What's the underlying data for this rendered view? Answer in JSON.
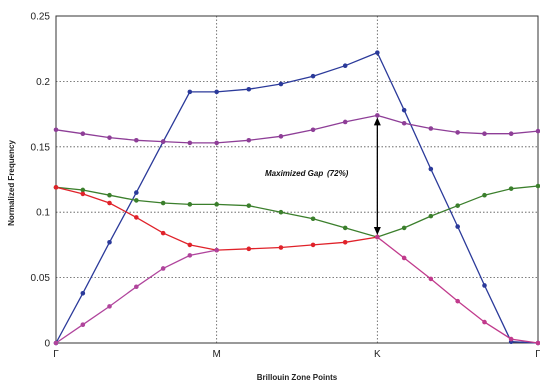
{
  "chart_data": {
    "type": "line",
    "xlabel": "Brillouin Zone Points",
    "ylabel": "Normalized Frequency",
    "x_ticks": [
      "Γ",
      "M",
      "K",
      "Γ"
    ],
    "ylim": [
      0,
      0.25
    ],
    "y_ticks": [
      "0",
      "0.05",
      "0.1",
      "0.15",
      "0.2",
      "0.25"
    ],
    "grid": true,
    "annotation": {
      "text": "Maximized Gap",
      "percent": "(72%)",
      "from_y": 0.081,
      "to_y": 0.174,
      "at_x": 2
    },
    "series": [
      {
        "color": "#2b3a9a",
        "x": [
          0,
          0.167,
          0.333,
          0.5,
          0.667,
          0.833,
          1,
          1.2,
          1.4,
          1.6,
          1.8,
          2,
          2.167,
          2.333,
          2.5,
          2.667,
          2.833,
          3
        ],
        "y": [
          0,
          0.038,
          0.077,
          0.115,
          0.154,
          0.192,
          0.192,
          0.194,
          0.198,
          0.204,
          0.212,
          0.222,
          0.178,
          0.133,
          0.089,
          0.044,
          0.001,
          0
        ]
      },
      {
        "color": "#8e3e97",
        "x": [
          0,
          0.167,
          0.333,
          0.5,
          0.667,
          0.833,
          1,
          1.2,
          1.4,
          1.6,
          1.8,
          2,
          2.167,
          2.333,
          2.5,
          2.667,
          2.833,
          3
        ],
        "y": [
          0.163,
          0.16,
          0.157,
          0.155,
          0.154,
          0.153,
          0.153,
          0.155,
          0.158,
          0.163,
          0.169,
          0.174,
          0.168,
          0.164,
          0.161,
          0.16,
          0.16,
          0.162
        ]
      },
      {
        "color": "#3b7f2c",
        "x": [
          0,
          0.167,
          0.333,
          0.5,
          0.667,
          0.833,
          1,
          1.2,
          1.4,
          1.6,
          1.8,
          2,
          2.167,
          2.333,
          2.5,
          2.667,
          2.833,
          3
        ],
        "y": [
          0.119,
          0.117,
          0.113,
          0.109,
          0.107,
          0.106,
          0.106,
          0.105,
          0.1,
          0.095,
          0.088,
          0.081,
          0.088,
          0.097,
          0.105,
          0.113,
          0.118,
          0.12
        ]
      },
      {
        "color": "#e0222a",
        "x": [
          0,
          0.167,
          0.333,
          0.5,
          0.667,
          0.833,
          1,
          1.2,
          1.4,
          1.6,
          1.8,
          2
        ],
        "y": [
          0.119,
          0.114,
          0.107,
          0.096,
          0.084,
          0.075,
          0.071,
          0.072,
          0.073,
          0.075,
          0.077,
          0.081
        ]
      },
      {
        "color": "#b0449c",
        "x": [
          0,
          0.167,
          0.333,
          0.5,
          0.667,
          0.833,
          1
        ],
        "y": [
          0,
          0.014,
          0.028,
          0.043,
          0.057,
          0.067,
          0.071
        ]
      },
      {
        "color": "#c13a8c",
        "x": [
          2,
          2.167,
          2.333,
          2.5,
          2.667,
          2.833,
          3
        ],
        "y": [
          0.081,
          0.065,
          0.049,
          0.032,
          0.016,
          0.003,
          0
        ]
      }
    ]
  }
}
